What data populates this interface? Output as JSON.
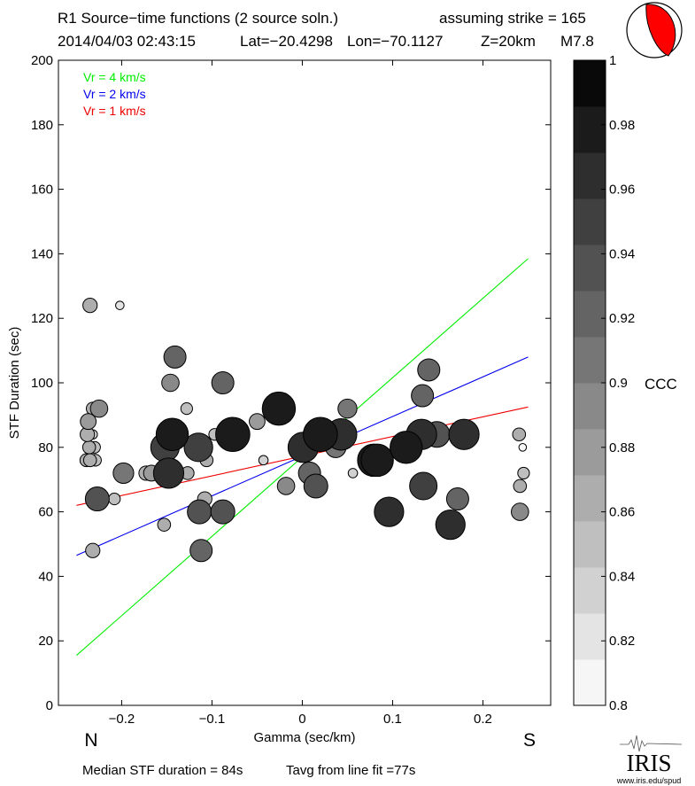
{
  "header": {
    "title": "R1 Source−time functions (2 source soln.)",
    "strike": "assuming strike = 165",
    "origin_time": "2014/04/03 02:43:15",
    "lat": "Lat=−20.4298",
    "lon": "Lon=−70.1127",
    "depth": "Z=20km",
    "magnitude": "M7.8"
  },
  "footer": {
    "median": "Median STF duration = 84s",
    "tavg": "Tavg from line fit =77s",
    "logo": "IRIS",
    "url": "www.iris.edu/spud"
  },
  "direction_labels": {
    "north": "N",
    "south": "S"
  },
  "colors": {
    "fast_line": "#00ee00",
    "mid_line": "#0000ee",
    "slow_line": "#ee0000",
    "beachball": "#ff0000"
  },
  "chart_data": {
    "type": "scatter",
    "xlabel": "Gamma (sec/km)",
    "ylabel": "STF Duration (sec)",
    "xlim": [
      -0.27,
      0.275
    ],
    "ylim": [
      0,
      200
    ],
    "xticks": [
      -0.2,
      -0.1,
      0,
      0.1,
      0.2
    ],
    "xtick_labels": [
      "−0.2",
      "−0.1",
      "0",
      "0.1",
      "0.2"
    ],
    "yticks": [
      0,
      20,
      40,
      60,
      80,
      100,
      120,
      140,
      160,
      180,
      200
    ],
    "ytick_labels": [
      "0",
      "20",
      "40",
      "60",
      "80",
      "100",
      "120",
      "140",
      "160",
      "180",
      "200"
    ],
    "legend": [
      {
        "label": "Vr = 4 km/s",
        "color": "#00ee00"
      },
      {
        "label": "Vr = 2 km/s",
        "color": "#0000ee"
      },
      {
        "label": "Vr = 1 km/s",
        "color": "#ee0000"
      }
    ],
    "lines": [
      {
        "name": "Vr = 4 km/s",
        "color": "#00ee00",
        "x": [
          -0.25,
          0.25
        ],
        "y": [
          15.5,
          138.5
        ]
      },
      {
        "name": "Vr = 2 km/s",
        "color": "#0000ee",
        "x": [
          -0.25,
          0.25
        ],
        "y": [
          46.5,
          108
        ]
      },
      {
        "name": "Vr = 1 km/s",
        "color": "#ee0000",
        "x": [
          -0.25,
          0.25
        ],
        "y": [
          62,
          92.5
        ]
      }
    ],
    "colorbar": {
      "label": "CCC",
      "min": 0.8,
      "max": 1.0,
      "ticks": [
        0.8,
        0.82,
        0.84,
        0.86,
        0.88,
        0.9,
        0.92,
        0.94,
        0.96,
        0.98,
        1
      ],
      "tick_labels": [
        "0.8",
        "0.82",
        "0.84",
        "0.86",
        "0.88",
        "0.9",
        "0.92",
        "0.94",
        "0.96",
        "0.98",
        "1"
      ]
    },
    "points": [
      {
        "x": -0.235,
        "y": 124,
        "ccc": 0.87
      },
      {
        "x": -0.202,
        "y": 124,
        "ccc": 0.82
      },
      {
        "x": -0.237,
        "y": 88,
        "ccc": 0.88
      },
      {
        "x": -0.232,
        "y": 92,
        "ccc": 0.86
      },
      {
        "x": -0.225,
        "y": 92,
        "ccc": 0.89
      },
      {
        "x": -0.223,
        "y": 92,
        "ccc": 0.86
      },
      {
        "x": -0.238,
        "y": 84,
        "ccc": 0.87
      },
      {
        "x": -0.232,
        "y": 84,
        "ccc": 0.83
      },
      {
        "x": -0.236,
        "y": 80,
        "ccc": 0.86
      },
      {
        "x": -0.23,
        "y": 80,
        "ccc": 0.85
      },
      {
        "x": -0.239,
        "y": 76,
        "ccc": 0.86
      },
      {
        "x": -0.235,
        "y": 76,
        "ccc": 0.86
      },
      {
        "x": -0.229,
        "y": 76,
        "ccc": 0.85
      },
      {
        "x": -0.227,
        "y": 64,
        "ccc": 0.93
      },
      {
        "x": -0.232,
        "y": 48,
        "ccc": 0.87
      },
      {
        "x": -0.208,
        "y": 64,
        "ccc": 0.85
      },
      {
        "x": -0.198,
        "y": 72,
        "ccc": 0.91
      },
      {
        "x": -0.173,
        "y": 72,
        "ccc": 0.87
      },
      {
        "x": -0.167,
        "y": 72,
        "ccc": 0.88
      },
      {
        "x": -0.152,
        "y": 80,
        "ccc": 0.955
      },
      {
        "x": -0.144,
        "y": 84,
        "ccc": 0.975
      },
      {
        "x": -0.148,
        "y": 72,
        "ccc": 0.965
      },
      {
        "x": -0.153,
        "y": 56,
        "ccc": 0.86
      },
      {
        "x": -0.146,
        "y": 100,
        "ccc": 0.89
      },
      {
        "x": -0.141,
        "y": 108,
        "ccc": 0.92
      },
      {
        "x": -0.128,
        "y": 92,
        "ccc": 0.85
      },
      {
        "x": -0.127,
        "y": 72,
        "ccc": 0.86
      },
      {
        "x": -0.115,
        "y": 80,
        "ccc": 0.955
      },
      {
        "x": -0.114,
        "y": 60,
        "ccc": 0.93
      },
      {
        "x": -0.112,
        "y": 60,
        "ccc": 0.82
      },
      {
        "x": -0.108,
        "y": 64,
        "ccc": 0.87
      },
      {
        "x": -0.106,
        "y": 76,
        "ccc": 0.86
      },
      {
        "x": -0.112,
        "y": 48,
        "ccc": 0.92
      },
      {
        "x": -0.097,
        "y": 84,
        "ccc": 0.85
      },
      {
        "x": -0.088,
        "y": 100,
        "ccc": 0.92
      },
      {
        "x": -0.088,
        "y": 60,
        "ccc": 0.93
      },
      {
        "x": -0.077,
        "y": 84,
        "ccc": 0.985
      },
      {
        "x": -0.05,
        "y": 88,
        "ccc": 0.88
      },
      {
        "x": -0.043,
        "y": 76,
        "ccc": 0.83
      },
      {
        "x": -0.026,
        "y": 92,
        "ccc": 0.98
      },
      {
        "x": -0.018,
        "y": 68,
        "ccc": 0.89
      },
      {
        "x": 0.001,
        "y": 80,
        "ccc": 0.965
      },
      {
        "x": 0.008,
        "y": 72,
        "ccc": 0.92
      },
      {
        "x": 0.015,
        "y": 68,
        "ccc": 0.93
      },
      {
        "x": 0.02,
        "y": 84,
        "ccc": 0.985
      },
      {
        "x": 0.037,
        "y": 80,
        "ccc": 0.91
      },
      {
        "x": 0.043,
        "y": 84,
        "ccc": 0.97
      },
      {
        "x": 0.05,
        "y": 92,
        "ccc": 0.9
      },
      {
        "x": 0.056,
        "y": 72,
        "ccc": 0.83
      },
      {
        "x": 0.079,
        "y": 76,
        "ccc": 0.975
      },
      {
        "x": 0.083,
        "y": 76,
        "ccc": 0.975
      },
      {
        "x": 0.096,
        "y": 60,
        "ccc": 0.96
      },
      {
        "x": 0.115,
        "y": 80,
        "ccc": 0.975
      },
      {
        "x": 0.132,
        "y": 84,
        "ccc": 0.965
      },
      {
        "x": 0.133,
        "y": 96,
        "ccc": 0.92
      },
      {
        "x": 0.14,
        "y": 104,
        "ccc": 0.92
      },
      {
        "x": 0.134,
        "y": 68,
        "ccc": 0.95
      },
      {
        "x": 0.149,
        "y": 84,
        "ccc": 0.94
      },
      {
        "x": 0.164,
        "y": 56,
        "ccc": 0.96
      },
      {
        "x": 0.172,
        "y": 64,
        "ccc": 0.92
      },
      {
        "x": 0.179,
        "y": 84,
        "ccc": 0.965
      },
      {
        "x": 0.24,
        "y": 84,
        "ccc": 0.86
      },
      {
        "x": 0.244,
        "y": 80,
        "ccc": 0.81
      },
      {
        "x": 0.245,
        "y": 72,
        "ccc": 0.85
      },
      {
        "x": 0.241,
        "y": 68,
        "ccc": 0.86
      },
      {
        "x": 0.241,
        "y": 60,
        "ccc": 0.89
      }
    ]
  }
}
